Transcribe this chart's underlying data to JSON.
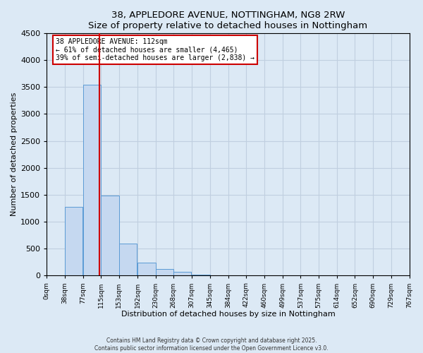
{
  "title": "38, APPLEDORE AVENUE, NOTTINGHAM, NG8 2RW",
  "subtitle": "Size of property relative to detached houses in Nottingham",
  "xlabel": "Distribution of detached houses by size in Nottingham",
  "ylabel": "Number of detached properties",
  "bar_left_edges": [
    0,
    38,
    77,
    115,
    153,
    192,
    230,
    268,
    307,
    345,
    384,
    422,
    460,
    499,
    537,
    575,
    614,
    652,
    690,
    729
  ],
  "bar_heights": [
    0,
    1280,
    3540,
    1490,
    600,
    240,
    130,
    70,
    15,
    5,
    2,
    1,
    0,
    0,
    0,
    0,
    0,
    0,
    0,
    0
  ],
  "bin_width": 38,
  "bar_color": "#c5d8f0",
  "bar_edge_color": "#5b9bd5",
  "vline_x": 112,
  "vline_color": "#cc0000",
  "ylim": [
    0,
    4500
  ],
  "xlim": [
    0,
    767
  ],
  "xtick_labels": [
    "0sqm",
    "38sqm",
    "77sqm",
    "115sqm",
    "153sqm",
    "192sqm",
    "230sqm",
    "268sqm",
    "307sqm",
    "345sqm",
    "384sqm",
    "422sqm",
    "460sqm",
    "499sqm",
    "537sqm",
    "575sqm",
    "614sqm",
    "652sqm",
    "690sqm",
    "729sqm",
    "767sqm"
  ],
  "xtick_positions": [
    0,
    38,
    77,
    115,
    153,
    192,
    230,
    268,
    307,
    345,
    384,
    422,
    460,
    499,
    537,
    575,
    614,
    652,
    690,
    729,
    767
  ],
  "annotation_title": "38 APPLEDORE AVENUE: 112sqm",
  "annotation_line1": "← 61% of detached houses are smaller (4,465)",
  "annotation_line2": "39% of semi-detached houses are larger (2,838) →",
  "annotation_box_color": "#ffffff",
  "annotation_box_edge_color": "#cc0000",
  "grid_color": "#c0cfe0",
  "bg_color": "#dce9f5",
  "footnote1": "Contains HM Land Registry data © Crown copyright and database right 2025.",
  "footnote2": "Contains public sector information licensed under the Open Government Licence v3.0."
}
